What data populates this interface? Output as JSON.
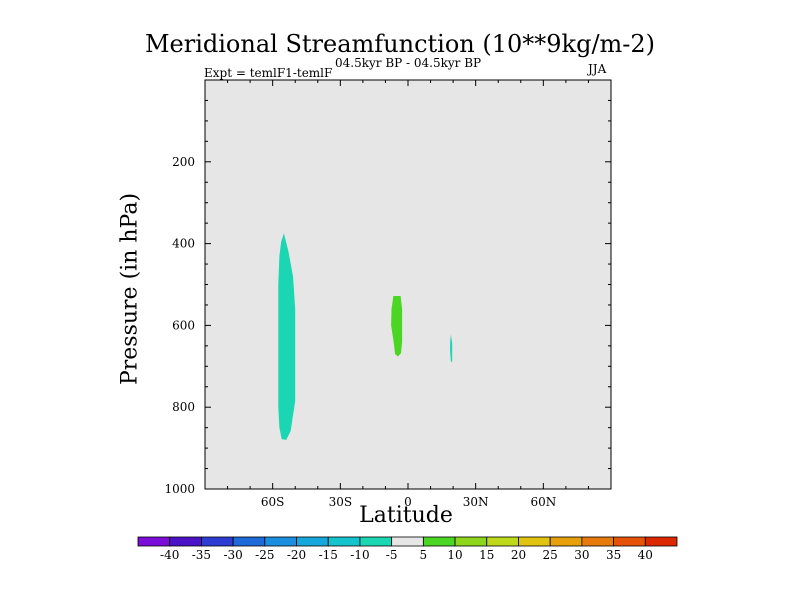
{
  "chart_data": {
    "type": "heatmap",
    "title": "Meridional Streamfunction (10**9kg/m-2)",
    "subtitle": "04.5kyr BP - 04.5kyr BP",
    "experiment_label": "Expt = temlF1-temlF",
    "season": "JJA",
    "xlabel": "Latitude",
    "ylabel": "Pressure (in hPa)",
    "x_ticks": [
      "60S",
      "30S",
      "0",
      "30N",
      "60N"
    ],
    "x_tick_values": [
      -60,
      -30,
      0,
      30,
      60
    ],
    "xlim": [
      -90,
      90
    ],
    "y_ticks": [
      "200",
      "400",
      "600",
      "800",
      "1000"
    ],
    "y_tick_values": [
      200,
      400,
      600,
      800,
      1000
    ],
    "ylim": [
      0,
      1000
    ],
    "background_color": "#e6e6e6",
    "colorbar": {
      "labels": [
        "-40",
        "-35",
        "-30",
        "-25",
        "-20",
        "-15",
        "-10",
        "-5",
        "5",
        "10",
        "15",
        "20",
        "25",
        "30",
        "35",
        "40"
      ],
      "colors": [
        "#7a0dd8",
        "#4b12c8",
        "#2d3cd2",
        "#1e6ad9",
        "#1a8fe0",
        "#16a8dd",
        "#14c4cc",
        "#1ad6b2",
        "#e6e6e6",
        "#4cd624",
        "#8ed61c",
        "#bed81a",
        "#e0c410",
        "#e6a00c",
        "#e67a0a",
        "#e65208",
        "#dc2800"
      ]
    },
    "regions": [
      {
        "name": "contour-cyan-60S",
        "color": "#1ad6b2",
        "points": [
          [
            -55,
            375
          ],
          [
            -53,
            420
          ],
          [
            -51,
            480
          ],
          [
            -50,
            560
          ],
          [
            -50,
            680
          ],
          [
            -50,
            785
          ],
          [
            -51,
            820
          ],
          [
            -52,
            858
          ],
          [
            -54,
            880
          ],
          [
            -56,
            878
          ],
          [
            -57,
            850
          ],
          [
            -57.5,
            800
          ],
          [
            -57.5,
            700
          ],
          [
            -57.5,
            600
          ],
          [
            -57.5,
            500
          ],
          [
            -57,
            430
          ],
          [
            -56.2,
            395
          ]
        ]
      },
      {
        "name": "contour-green-5S",
        "color": "#4cd624",
        "points": [
          [
            -6.5,
            528
          ],
          [
            -3.3,
            528
          ],
          [
            -2.6,
            560
          ],
          [
            -2.6,
            640
          ],
          [
            -3.1,
            668
          ],
          [
            -4.5,
            676
          ],
          [
            -5.7,
            670
          ],
          [
            -6.4,
            640
          ],
          [
            -7.5,
            600
          ],
          [
            -7.3,
            560
          ],
          [
            -6.8,
            540
          ]
        ]
      },
      {
        "name": "contour-cyan-20N",
        "color": "#1ad6b2",
        "points": [
          [
            19,
            622
          ],
          [
            19.6,
            645
          ],
          [
            19.6,
            690
          ],
          [
            19,
            688
          ],
          [
            18.6,
            660
          ],
          [
            18.7,
            640
          ]
        ]
      }
    ]
  }
}
